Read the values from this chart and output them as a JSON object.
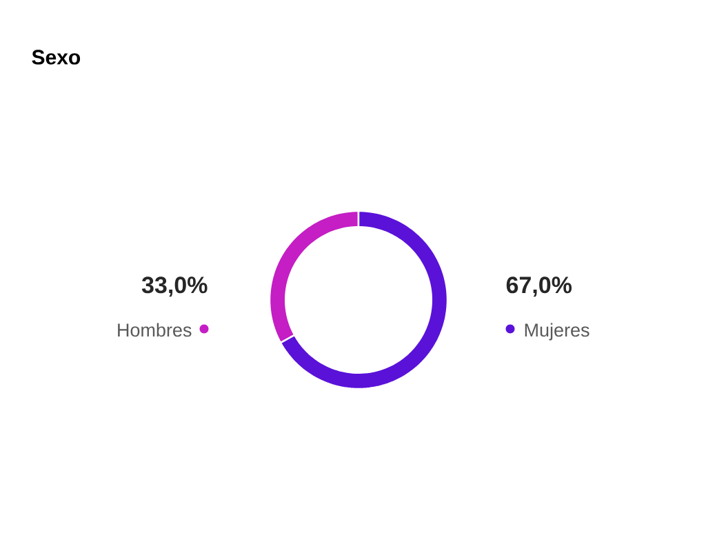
{
  "chart_data": {
    "type": "donut",
    "title": "Sexo",
    "categories": [
      "Hombres",
      "Mujeres"
    ],
    "values": [
      33.0,
      67.0
    ],
    "colors": [
      "#c41ec4",
      "#5a12d8"
    ],
    "value_labels": [
      "33,0%",
      "67,0%"
    ]
  }
}
